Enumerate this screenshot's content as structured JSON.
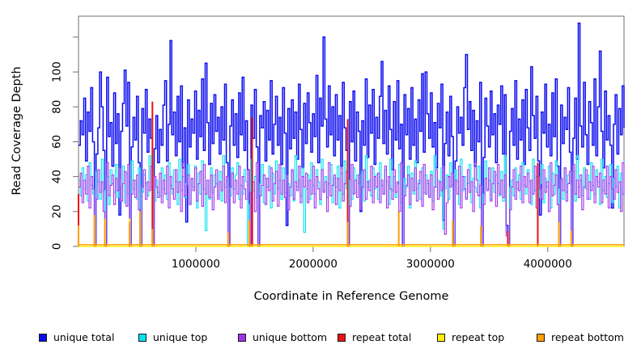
{
  "chart_data": {
    "type": "line",
    "subtype": "step-coverage-plot",
    "title": "",
    "xlabel": "Coordinate in Reference Genome",
    "ylabel": "Read Coverage Depth",
    "xlim": [
      0,
      4650000
    ],
    "ylim": [
      0,
      132
    ],
    "x_ticks": [
      1000000,
      2000000,
      3000000,
      4000000
    ],
    "y_ticks": [
      0,
      20,
      40,
      60,
      80,
      100,
      120
    ],
    "y_tick_labels": [
      "0",
      "20",
      "40",
      "60",
      "80",
      "100",
      ""
    ],
    "grid": false,
    "legend_position": "bottom",
    "frame_color": "#6f6f6f",
    "x_start": 0,
    "x_step": 15000,
    "series": [
      {
        "name": "unique total",
        "color": "#0b0bf0",
        "type": "step",
        "values": [
          58,
          72,
          64,
          85,
          49,
          77,
          66,
          91,
          60,
          0,
          53,
          68,
          100,
          80,
          55,
          0,
          97,
          63,
          71,
          46,
          88,
          59,
          76,
          18,
          66,
          82,
          101,
          69,
          94,
          0,
          57,
          74,
          61,
          86,
          48,
          0,
          79,
          65,
          90,
          54,
          73,
          62,
          0,
          56,
          75,
          48,
          67,
          58,
          81,
          95,
          49,
          70,
          118,
          64,
          77,
          52,
          86,
          60,
          92,
          45,
          68,
          14,
          84,
          57,
          73,
          65,
          89,
          50,
          78,
          63,
          96,
          55,
          105,
          71,
          47,
          82,
          59,
          87,
          66,
          74,
          53,
          80,
          61,
          93,
          48,
          0,
          69,
          84,
          58,
          76,
          51,
          88,
          64,
          97,
          55,
          72,
          44,
          0,
          81,
          62,
          90,
          57,
          0,
          75,
          68,
          83,
          49,
          78,
          61,
          95,
          53,
          70,
          86,
          58,
          74,
          47,
          91,
          65,
          12,
          79,
          56,
          84,
          62,
          77,
          50,
          93,
          67,
          45,
          82,
          59,
          88,
          71,
          54,
          76,
          63,
          98,
          48,
          85,
          69,
          120,
          73,
          57,
          92,
          64,
          80,
          52,
          87,
          61,
          75,
          46,
          94,
          68,
          55,
          0,
          83,
          60,
          89,
          49,
          77,
          66,
          20,
          72,
          58,
          96,
          51,
          81,
          65,
          90,
          47,
          74,
          62,
          86,
          106,
          59,
          78,
          53,
          92,
          67,
          44,
          83,
          61,
          95,
          56,
          70,
          0,
          87,
          64,
          79,
          50,
          91,
          58,
          73,
          48,
          84,
          66,
          99,
          54,
          100,
          76,
          62,
          88,
          57,
          71,
          45,
          82,
          68,
          93,
          15,
          59,
          77,
          52,
          86,
          63,
          0,
          49,
          80,
          65,
          74,
          58,
          91,
          110,
          67,
          83,
          55,
          78,
          46,
          72,
          60,
          94,
          0,
          51,
          85,
          69,
          57,
          89,
          64,
          76,
          48,
          81,
          70,
          92,
          53,
          87,
          12,
          0,
          66,
          79,
          58,
          95,
          50,
          73,
          61,
          84,
          47,
          90,
          68,
          55,
          103,
          75,
          62,
          86,
          49,
          18,
          77,
          65,
          93,
          57,
          70,
          52,
          88,
          63,
          96,
          46,
          0,
          81,
          59,
          74,
          67,
          91,
          54,
          0,
          62,
          85,
          50,
          128,
          69,
          57,
          94,
          64,
          47,
          83,
          71,
          58,
          96,
          52,
          80,
          112,
          66,
          45,
          89,
          61,
          75,
          58,
          22,
          70,
          87,
          53,
          79,
          64,
          92,
          68
        ]
      },
      {
        "name": "unique top",
        "color": "#00e2ee",
        "type": "step",
        "values": [
          38,
          29,
          45,
          33,
          41,
          26,
          48,
          35,
          30,
          0,
          43,
          37,
          27,
          50,
          32,
          0,
          40,
          24,
          44,
          36,
          31,
          47,
          28,
          39,
          34,
          46,
          25,
          42,
          30,
          0,
          49,
          33,
          38,
          27,
          45,
          0,
          31,
          41,
          36,
          29,
          52,
          34,
          0,
          26,
          38,
          31,
          29,
          45,
          33,
          41,
          27,
          48,
          35,
          30,
          44,
          37,
          24,
          50,
          32,
          40,
          28,
          36,
          47,
          25,
          39,
          34,
          46,
          22,
          42,
          30,
          49,
          33,
          9,
          38,
          27,
          45,
          31,
          41,
          36,
          29,
          43,
          26,
          52,
          34,
          38,
          0,
          29,
          45,
          33,
          41,
          48,
          27,
          35,
          30,
          44,
          37,
          0,
          24,
          50,
          32,
          40,
          28,
          0,
          36,
          47,
          25,
          39,
          34,
          46,
          22,
          42,
          30,
          49,
          33,
          38,
          27,
          45,
          31,
          41,
          36,
          29,
          43,
          26,
          52,
          34,
          38,
          29,
          45,
          8,
          33,
          41,
          27,
          48,
          35,
          30,
          44,
          37,
          24,
          50,
          32,
          40,
          28,
          36,
          47,
          25,
          39,
          34,
          46,
          22,
          42,
          30,
          49,
          33,
          0,
          38,
          27,
          45,
          31,
          41,
          36,
          29,
          43,
          26,
          52,
          34,
          38,
          29,
          45,
          33,
          41,
          27,
          48,
          35,
          30,
          44,
          37,
          24,
          50,
          32,
          40,
          28,
          36,
          47,
          25,
          0,
          39,
          34,
          46,
          22,
          42,
          30,
          49,
          33,
          38,
          27,
          45,
          31,
          41,
          36,
          29,
          43,
          26,
          52,
          34,
          38,
          29,
          45,
          10,
          33,
          41,
          27,
          48,
          35,
          0,
          44,
          37,
          24,
          50,
          32,
          40,
          28,
          36,
          47,
          25,
          39,
          34,
          31,
          46,
          22,
          0,
          30,
          49,
          33,
          38,
          27,
          45,
          31,
          41,
          36,
          29,
          43,
          26,
          52,
          8,
          0,
          34,
          38,
          29,
          45,
          33,
          41,
          27,
          48,
          35,
          30,
          44,
          37,
          24,
          50,
          32,
          40,
          28,
          36,
          47,
          25,
          39,
          34,
          46,
          22,
          42,
          30,
          49,
          33,
          0,
          38,
          27,
          45,
          31,
          41,
          36,
          0,
          43,
          26,
          52,
          34,
          38,
          29,
          45,
          33,
          41,
          27,
          48,
          35,
          30,
          44,
          37,
          24,
          50,
          32,
          40,
          28,
          36,
          47,
          25,
          39,
          34,
          46,
          22,
          42,
          30,
          49
        ]
      },
      {
        "name": "unique bottom",
        "color": "#a132ec",
        "type": "step",
        "values": [
          34,
          42,
          25,
          38,
          30,
          46,
          22,
          40,
          33,
          0,
          27,
          44,
          31,
          37,
          20,
          0,
          48,
          29,
          35,
          41,
          24,
          39,
          32,
          45,
          26,
          36,
          43,
          23,
          47,
          0,
          30,
          38,
          28,
          41,
          21,
          0,
          34,
          44,
          27,
          37,
          32,
          46,
          0,
          40,
          34,
          28,
          42,
          25,
          38,
          30,
          46,
          22,
          40,
          33,
          27,
          44,
          31,
          37,
          20,
          48,
          29,
          35,
          41,
          24,
          39,
          32,
          45,
          26,
          36,
          43,
          23,
          47,
          30,
          38,
          28,
          41,
          21,
          34,
          44,
          27,
          37,
          32,
          46,
          25,
          40,
          0,
          34,
          42,
          25,
          38,
          30,
          46,
          22,
          40,
          33,
          27,
          44,
          31,
          0,
          37,
          20,
          48,
          0,
          29,
          35,
          41,
          24,
          39,
          32,
          45,
          26,
          36,
          43,
          23,
          47,
          30,
          38,
          28,
          41,
          21,
          34,
          44,
          27,
          37,
          32,
          46,
          25,
          40,
          34,
          42,
          25,
          38,
          30,
          46,
          22,
          40,
          33,
          27,
          44,
          31,
          37,
          20,
          48,
          29,
          35,
          41,
          24,
          39,
          32,
          45,
          26,
          36,
          43,
          0,
          23,
          47,
          30,
          38,
          28,
          41,
          21,
          34,
          44,
          27,
          37,
          32,
          46,
          25,
          40,
          34,
          42,
          25,
          38,
          30,
          46,
          22,
          40,
          33,
          27,
          44,
          31,
          37,
          20,
          48,
          0,
          29,
          35,
          41,
          24,
          39,
          32,
          45,
          26,
          36,
          43,
          23,
          47,
          30,
          38,
          28,
          41,
          21,
          34,
          44,
          27,
          37,
          32,
          46,
          7,
          25,
          40,
          34,
          42,
          0,
          38,
          30,
          46,
          22,
          40,
          33,
          27,
          44,
          31,
          37,
          20,
          48,
          38,
          29,
          35,
          0,
          24,
          39,
          32,
          45,
          26,
          36,
          43,
          23,
          47,
          30,
          38,
          28,
          41,
          6,
          0,
          21,
          34,
          44,
          27,
          37,
          32,
          46,
          25,
          40,
          34,
          42,
          25,
          38,
          30,
          46,
          22,
          40,
          33,
          27,
          44,
          31,
          37,
          20,
          48,
          29,
          35,
          41,
          24,
          0,
          39,
          32,
          45,
          26,
          36,
          43,
          0,
          47,
          30,
          38,
          28,
          41,
          21,
          34,
          44,
          27,
          37,
          32,
          46,
          25,
          40,
          34,
          42,
          25,
          38,
          30,
          46,
          22,
          40,
          33,
          27,
          44,
          31,
          37,
          20,
          48,
          29
        ]
      },
      {
        "name": "repeat total",
        "color": "#ee1111",
        "type": "spikes",
        "spikes": [
          [
            0,
            30
          ],
          [
            630000,
            83
          ],
          [
            1480000,
            74
          ],
          [
            2295000,
            73
          ],
          [
            3660000,
            9
          ],
          [
            3915000,
            48
          ]
        ]
      },
      {
        "name": "repeat top",
        "color": "#ffee00",
        "type": "spikes",
        "baseline": 0,
        "spikes": [
          [
            435000,
            16
          ]
        ]
      },
      {
        "name": "repeat bottom",
        "color": "#ff9e00",
        "type": "spikes",
        "baseline": 1,
        "spikes": [
          [
            0,
            12
          ],
          [
            135000,
            18
          ],
          [
            225000,
            16
          ],
          [
            435000,
            14
          ],
          [
            525000,
            20
          ],
          [
            630000,
            10
          ],
          [
            1275000,
            8
          ],
          [
            1455000,
            15
          ],
          [
            2295000,
            14
          ],
          [
            2730000,
            20
          ],
          [
            3190000,
            15
          ],
          [
            3430000,
            12
          ],
          [
            4095000,
            14
          ],
          [
            4200000,
            9
          ]
        ]
      }
    ]
  }
}
